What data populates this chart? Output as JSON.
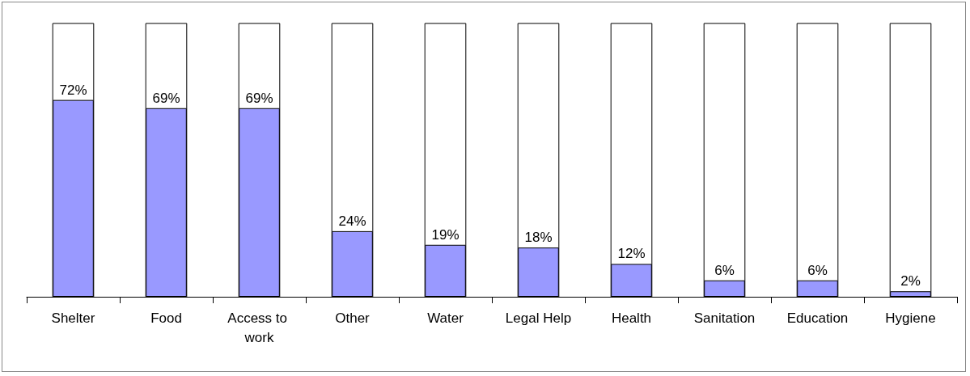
{
  "chart_data": {
    "type": "bar",
    "categories": [
      "Shelter",
      "Food",
      "Access to work",
      "Other",
      "Water",
      "Legal Help",
      "Health",
      "Sanitation",
      "Education",
      "Hygiene"
    ],
    "series": [
      {
        "color": "#9999ff",
        "values": [
          72,
          69,
          69,
          24,
          19,
          18,
          12,
          6,
          6,
          2
        ],
        "value_labels": [
          "72%",
          "69%",
          "69%",
          "24%",
          "19%",
          "18%",
          "12%",
          "6%",
          "6%",
          "2%"
        ]
      }
    ],
    "ylim": [
      0,
      100
    ],
    "grid": false
  }
}
